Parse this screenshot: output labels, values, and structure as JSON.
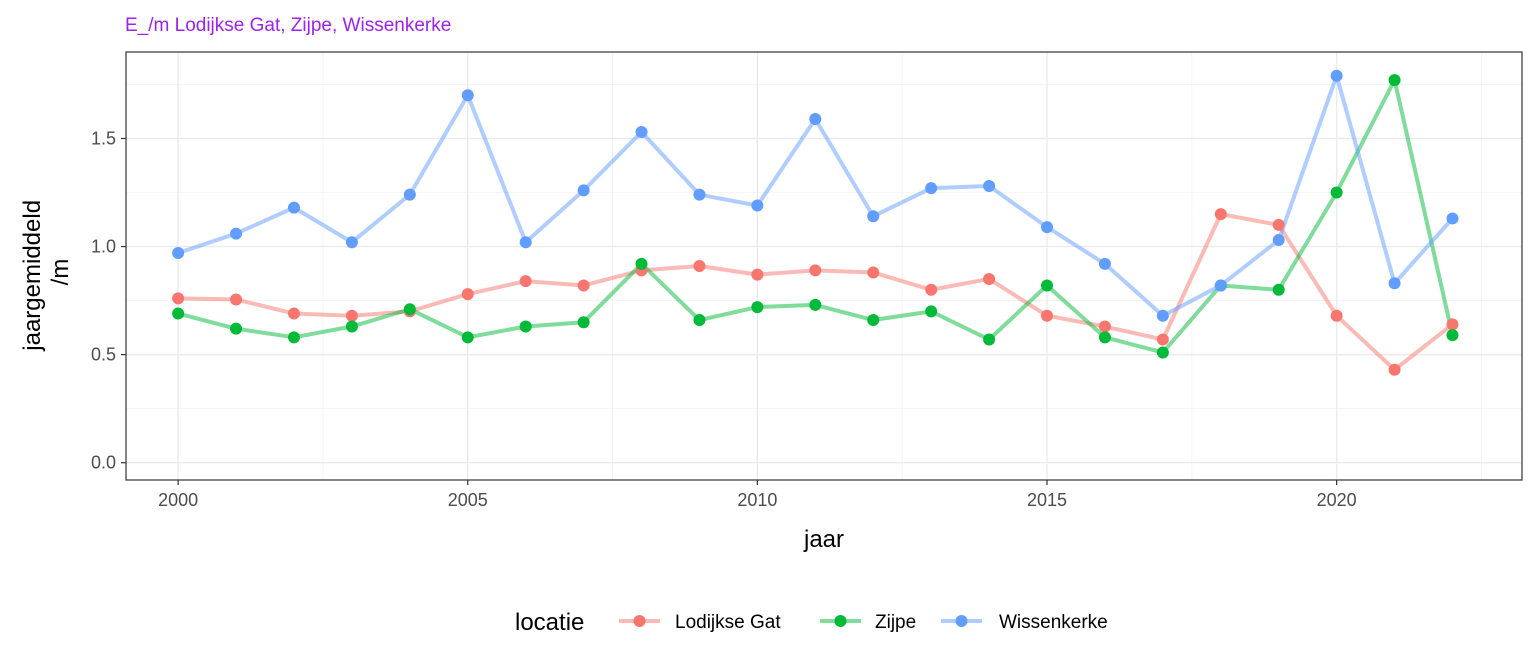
{
  "chart_data": {
    "type": "line",
    "title": "E_/m Lodijkse Gat, Zijpe, Wissenkerke",
    "title_color": "#a020f0",
    "xlabel": "jaar",
    "ylabel_lines": [
      "jaargemiddeld",
      "/m"
    ],
    "xlim": [
      1999.1,
      2023.2
    ],
    "ylim": [
      -0.08,
      1.9
    ],
    "x_ticks": [
      2000,
      2005,
      2010,
      2015,
      2020
    ],
    "y_ticks": [
      0.0,
      0.5,
      1.0,
      1.5
    ],
    "y_tick_labels": [
      "0.0",
      "0.5",
      "1.0",
      "1.5"
    ],
    "grid": true,
    "legend_title": "locatie",
    "legend_position": "bottom",
    "x": [
      2000,
      2001,
      2002,
      2003,
      2004,
      2005,
      2006,
      2007,
      2008,
      2009,
      2010,
      2011,
      2012,
      2013,
      2014,
      2015,
      2016,
      2017,
      2018,
      2019,
      2020,
      2021,
      2022
    ],
    "series": [
      {
        "name": "Lodijkse Gat",
        "color": "#f8766d",
        "values": [
          0.76,
          0.755,
          0.69,
          0.68,
          0.7,
          0.78,
          0.84,
          0.82,
          0.89,
          0.91,
          0.87,
          0.89,
          0.88,
          0.8,
          0.85,
          0.68,
          0.63,
          0.57,
          1.15,
          1.1,
          0.68,
          0.43,
          0.64
        ]
      },
      {
        "name": "Zijpe",
        "color": "#00ba38",
        "values": [
          0.69,
          0.62,
          0.58,
          0.63,
          0.71,
          0.58,
          0.63,
          0.65,
          0.92,
          0.66,
          0.72,
          0.73,
          0.66,
          0.7,
          0.57,
          0.82,
          0.58,
          0.51,
          0.82,
          0.8,
          1.25,
          1.77,
          0.59
        ]
      },
      {
        "name": "Wissenkerke",
        "color": "#619cff",
        "values": [
          0.97,
          1.06,
          1.18,
          1.02,
          1.24,
          1.7,
          1.02,
          1.26,
          1.53,
          1.24,
          1.19,
          1.59,
          1.14,
          1.27,
          1.28,
          1.09,
          0.92,
          0.68,
          0.82,
          1.03,
          1.79,
          0.83,
          1.13
        ]
      }
    ]
  }
}
